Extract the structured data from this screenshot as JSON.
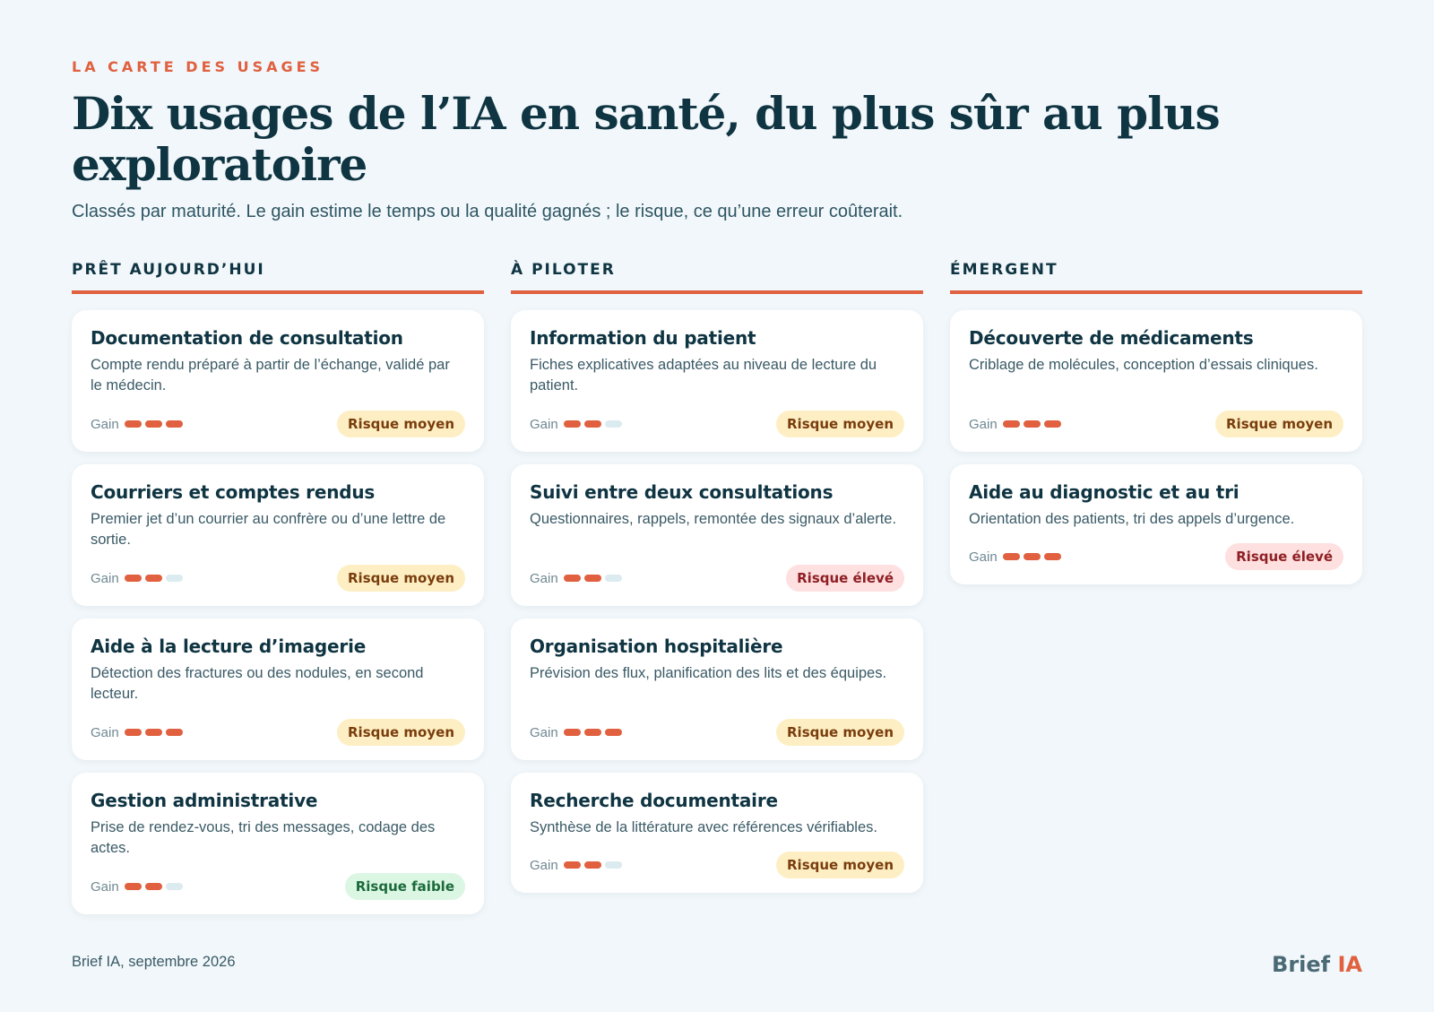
{
  "header": {
    "kicker": "LA CARTE DES USAGES",
    "title": "Dix usages de l’IA en santé, du plus sûr au plus exploratoire",
    "subtitle": "Classés par maturité. Le gain estime le temps ou la qualité gagnés ; le risque, ce qu’une erreur coûterait."
  },
  "gain_label": "Gain",
  "gain_scale_max": 3,
  "colors": {
    "accent": "#e0603f",
    "ink": "#0f3442",
    "pill_off": "#dcebef",
    "risk_moyen_bg": "#fdefc3",
    "risk_eleve_bg": "#fde0df",
    "risk_faible_bg": "#dcf6e4"
  },
  "columns": [
    {
      "heading": "PRÊT AUJOURD’HUI",
      "cards": [
        {
          "title": "Documentation de consultation",
          "description": "Compte rendu préparé à partir de l’échange, validé par le médecin.",
          "gain": 3,
          "risk_level": "moyen",
          "risk_label": "Risque moyen"
        },
        {
          "title": "Courriers et comptes rendus",
          "description": "Premier jet d’un courrier au confrère ou d’une lettre de sortie.",
          "gain": 2,
          "risk_level": "moyen",
          "risk_label": "Risque moyen"
        },
        {
          "title": "Aide à la lecture d’imagerie",
          "description": "Détection des fractures ou des nodules, en second lecteur.",
          "gain": 3,
          "risk_level": "moyen",
          "risk_label": "Risque moyen"
        },
        {
          "title": "Gestion administrative",
          "description": "Prise de rendez-vous, tri des messages, codage des actes.",
          "gain": 2,
          "risk_level": "faible",
          "risk_label": "Risque faible"
        }
      ]
    },
    {
      "heading": "À PILOTER",
      "cards": [
        {
          "title": "Information du patient",
          "description": "Fiches explicatives adaptées au niveau de lecture du patient.",
          "gain": 2,
          "risk_level": "moyen",
          "risk_label": "Risque moyen"
        },
        {
          "title": "Suivi entre deux consultations",
          "description": "Questionnaires, rappels, remontée des signaux d’alerte.",
          "gain": 2,
          "risk_level": "eleve",
          "risk_label": "Risque élevé"
        },
        {
          "title": "Organisation hospitalière",
          "description": "Prévision des flux, planification des lits et des équipes.",
          "gain": 3,
          "risk_level": "moyen",
          "risk_label": "Risque moyen"
        },
        {
          "title": "Recherche documentaire",
          "description": "Synthèse de la littérature avec références vérifiables.",
          "gain": 2,
          "risk_level": "moyen",
          "risk_label": "Risque moyen"
        }
      ]
    },
    {
      "heading": "ÉMERGENT",
      "cards": [
        {
          "title": "Découverte de médicaments",
          "description": "Criblage de molécules, conception d’essais cliniques.",
          "gain": 3,
          "risk_level": "moyen",
          "risk_label": "Risque moyen"
        },
        {
          "title": "Aide au diagnostic et au tri",
          "description": "Orientation des patients, tri des appels d’urgence.",
          "gain": 3,
          "risk_level": "eleve",
          "risk_label": "Risque élevé"
        }
      ]
    }
  ],
  "footer": {
    "source": "Brief IA, septembre 2026",
    "brand_main": "Brief",
    "brand_accent": "IA"
  }
}
